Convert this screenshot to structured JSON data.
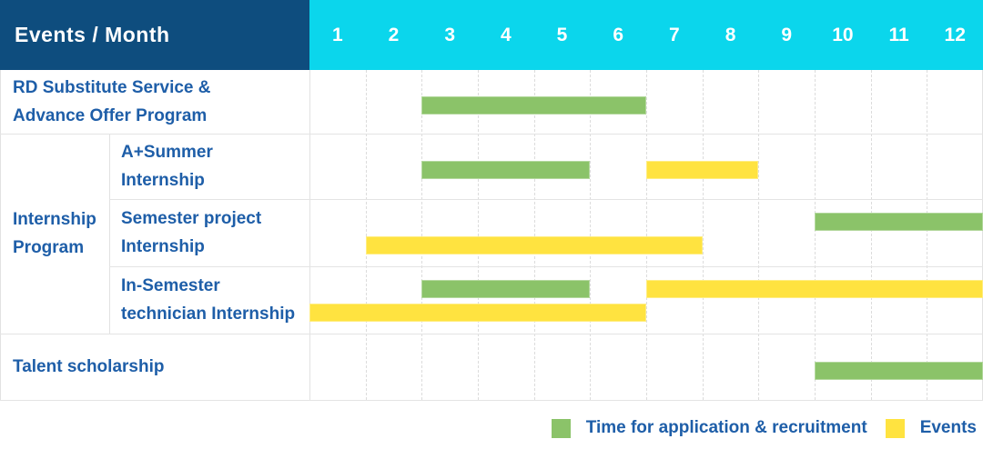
{
  "header": {
    "title": "Events / Month"
  },
  "chart_data": {
    "type": "table",
    "subtype": "gantt-schedule",
    "title": "Events / Month",
    "months": [
      "1",
      "2",
      "3",
      "4",
      "5",
      "6",
      "7",
      "8",
      "9",
      "10",
      "11",
      "12"
    ],
    "x_range": [
      1,
      12
    ],
    "colors": {
      "header_left_bg": "#0E4D7E",
      "header_months_bg": "#0BD6EC",
      "recruitment_bar": "#8BC369",
      "event_bar": "#FFE340",
      "label_text": "#1E5EA8"
    },
    "group_label_lines": [
      "Internship",
      "Program"
    ],
    "rows": [
      {
        "group": "",
        "label": "RD Substitute Service & Advance Offer Program",
        "label_lines": [
          "RD Substitute Service &",
          "Advance Offer Program"
        ],
        "bars": [
          {
            "kind": "recruitment",
            "start_month": 3,
            "end_month": 6,
            "lane": "single"
          }
        ]
      },
      {
        "group": "Internship Program",
        "label": "A+Summer Internship",
        "label_lines": [
          "A+Summer",
          "Internship"
        ],
        "bars": [
          {
            "kind": "recruitment",
            "start_month": 3,
            "end_month": 5,
            "lane": "single"
          },
          {
            "kind": "event",
            "start_month": 7,
            "end_month": 8,
            "lane": "single"
          }
        ]
      },
      {
        "group": "Internship Program",
        "label": "Semester project Internship",
        "label_lines": [
          "Semester project",
          "Internship"
        ],
        "bars": [
          {
            "kind": "recruitment",
            "start_month": 10,
            "end_month": 12,
            "lane": "top"
          },
          {
            "kind": "event",
            "start_month": 2,
            "end_month": 7,
            "lane": "bottom"
          }
        ]
      },
      {
        "group": "Internship Program",
        "label": "In-Semester technician Internship",
        "label_lines": [
          "In-Semester",
          "technician Internship"
        ],
        "bars": [
          {
            "kind": "recruitment",
            "start_month": 3,
            "end_month": 5,
            "lane": "top"
          },
          {
            "kind": "event",
            "start_month": 7,
            "end_month": 12,
            "lane": "top"
          },
          {
            "kind": "event",
            "start_month": 1,
            "end_month": 6,
            "lane": "bottom"
          }
        ]
      },
      {
        "group": "",
        "label": "Talent scholarship",
        "label_lines": [
          "Talent scholarship"
        ],
        "bars": [
          {
            "kind": "recruitment",
            "start_month": 10,
            "end_month": 12,
            "lane": "single"
          }
        ]
      }
    ],
    "legend": [
      {
        "kind": "recruitment",
        "label": "Time for application & recruitment"
      },
      {
        "kind": "event",
        "label": "Events"
      }
    ],
    "legend_position": "bottom-right"
  }
}
